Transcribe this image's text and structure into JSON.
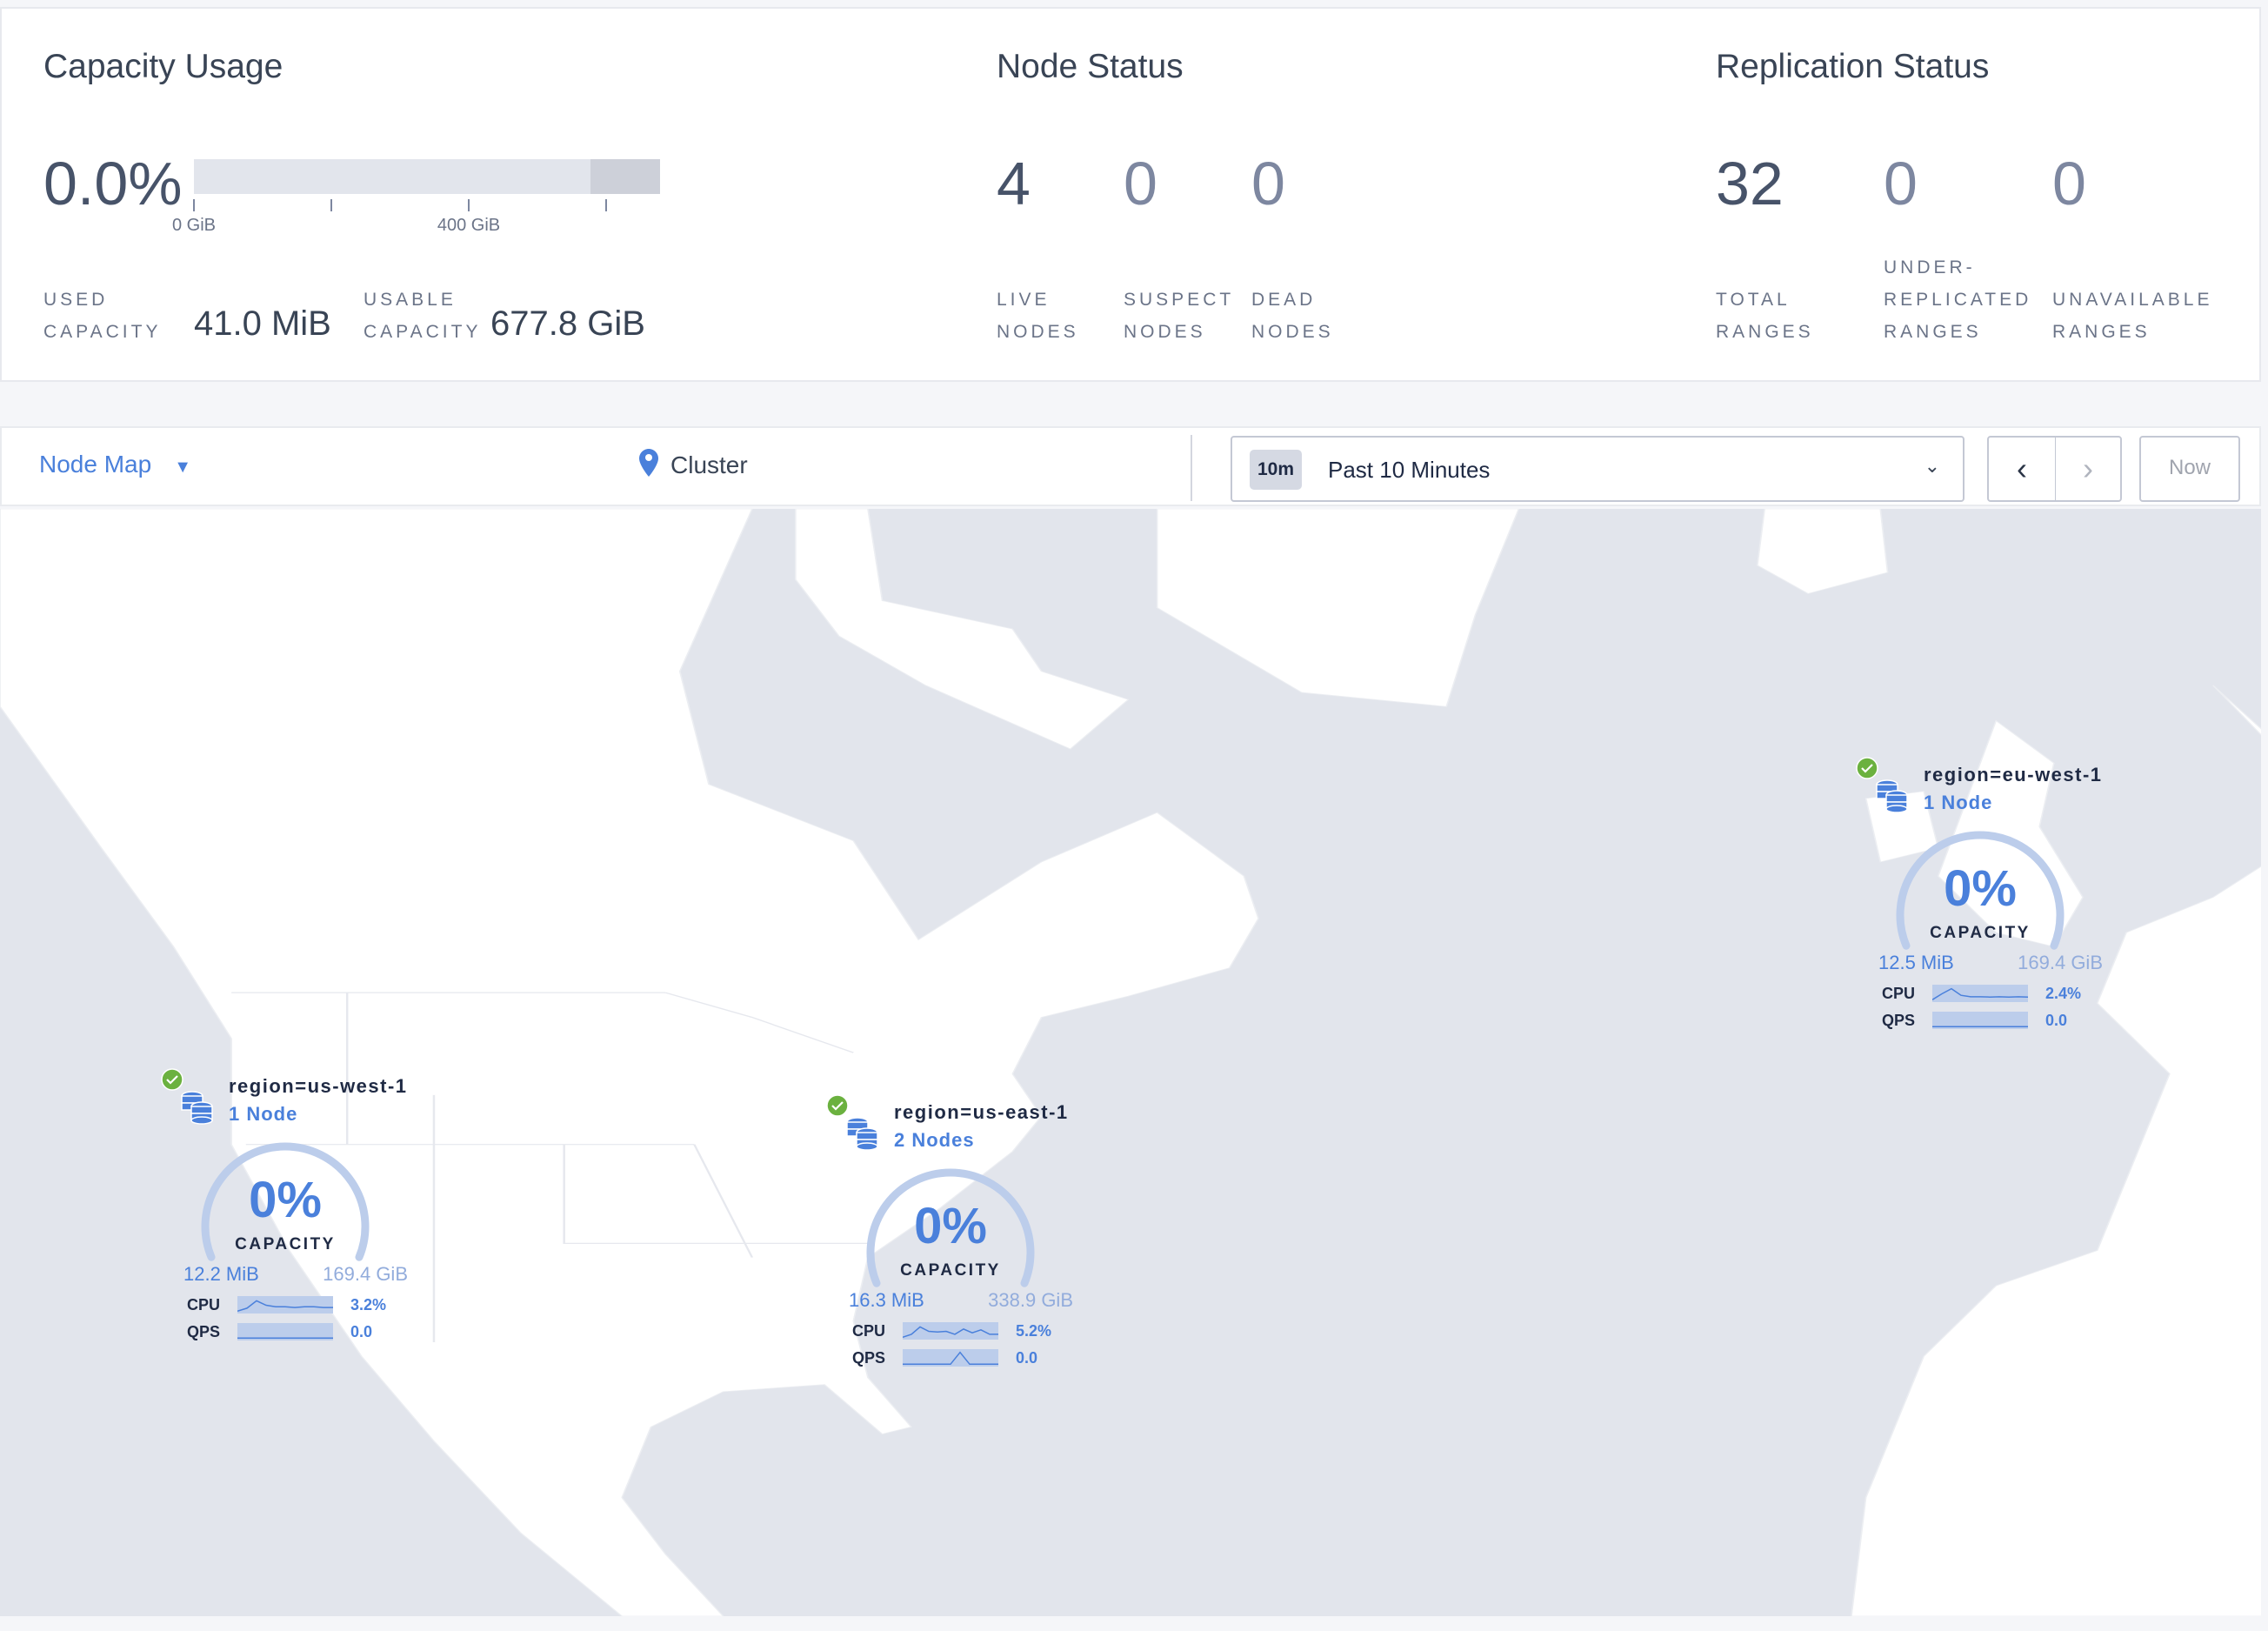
{
  "capacity": {
    "title": "Capacity Usage",
    "percent": "0.0%",
    "used_fraction": 0.0,
    "ticks": [
      "0 GiB",
      "400 GiB"
    ],
    "used_label_1": "USED",
    "used_label_2": "CAPACITY",
    "used_value": "41.0 MiB",
    "usable_label_1": "USABLE",
    "usable_label_2": "CAPACITY",
    "usable_value": "677.8 GiB"
  },
  "node_status": {
    "title": "Node Status",
    "stats": [
      {
        "value": "4",
        "l1": "LIVE",
        "l2": "NODES"
      },
      {
        "value": "0",
        "l1": "SUSPECT",
        "l2": "NODES"
      },
      {
        "value": "0",
        "l1": "DEAD",
        "l2": "NODES"
      }
    ]
  },
  "replication": {
    "title": "Replication Status",
    "stats": [
      {
        "value": "32",
        "l0": "",
        "l1": "TOTAL",
        "l2": "RANGES"
      },
      {
        "value": "0",
        "l0": "UNDER-",
        "l1": "REPLICATED",
        "l2": "RANGES"
      },
      {
        "value": "0",
        "l0": "",
        "l1": "UNAVAILABLE",
        "l2": "RANGES"
      }
    ]
  },
  "toolbar": {
    "view": "Node Map",
    "location": "Cluster",
    "time_badge": "10m",
    "time_range": "Past 10 Minutes",
    "now": "Now"
  },
  "colors": {
    "accent": "#4a80db",
    "healthy": "#6bb13f",
    "land": "#ffffff",
    "water": "#e2e5ec"
  },
  "clusters": [
    {
      "id": "us-west",
      "title": "region=us-west-1",
      "nodes": "1 Node",
      "pct": "0%",
      "cap": "CAPACITY",
      "used": "12.2 MiB",
      "total": "169.4 GiB",
      "cpu_label": "CPU",
      "cpu": "3.2%",
      "qps_label": "QPS",
      "qps": "0.0",
      "cpu_trend": [
        0.1,
        0.3,
        0.8,
        0.5,
        0.4,
        0.4,
        0.35,
        0.4,
        0.4,
        0.35,
        0.35
      ],
      "qps_trend": [
        0.1,
        0.1,
        0.1,
        0.1,
        0.1,
        0.1,
        0.1,
        0.1,
        0.1,
        0.1,
        0.1
      ]
    },
    {
      "id": "us-east",
      "title": "region=us-east-1",
      "nodes": "2 Nodes",
      "pct": "0%",
      "cap": "CAPACITY",
      "used": "16.3 MiB",
      "total": "338.9 GiB",
      "cpu_label": "CPU",
      "cpu": "5.2%",
      "qps_label": "QPS",
      "qps": "0.0",
      "cpu_trend": [
        0.1,
        0.3,
        0.8,
        0.5,
        0.45,
        0.5,
        0.3,
        0.65,
        0.4,
        0.6,
        0.3,
        0.3
      ],
      "qps_trend": [
        0.1,
        0.1,
        0.1,
        0.1,
        0.1,
        0.1,
        0.9,
        0.1,
        0.1,
        0.1,
        0.1
      ]
    },
    {
      "id": "eu-west",
      "title": "region=eu-west-1",
      "nodes": "1 Node",
      "pct": "0%",
      "cap": "CAPACITY",
      "used": "12.5 MiB",
      "total": "169.4 GiB",
      "cpu_label": "CPU",
      "cpu": "2.4%",
      "qps_label": "QPS",
      "qps": "0.0",
      "cpu_trend": [
        0.1,
        0.5,
        0.85,
        0.4,
        0.3,
        0.3,
        0.28,
        0.3,
        0.28,
        0.3,
        0.28
      ],
      "qps_trend": [
        0.1,
        0.1,
        0.1,
        0.1,
        0.1,
        0.1,
        0.1,
        0.1,
        0.1,
        0.1,
        0.1
      ]
    }
  ]
}
